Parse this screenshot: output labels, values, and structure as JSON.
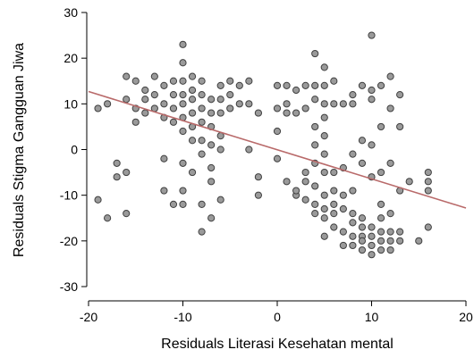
{
  "chart_data": {
    "type": "scatter",
    "xlabel": "Residuals Literasi Kesehatan mental",
    "ylabel": "Residuals Stigma Gangguan Jiwa",
    "xlim": [
      -20,
      20
    ],
    "ylim": [
      -30,
      30
    ],
    "x_ticks": [
      -20,
      -10,
      0,
      10,
      20
    ],
    "y_ticks": [
      -30,
      -20,
      -10,
      0,
      10,
      20,
      30
    ],
    "x_tick_labels": [
      "-20",
      "-10",
      "0",
      "10",
      "20"
    ],
    "y_tick_labels": [
      "-30",
      "-20",
      "-10",
      "0",
      "10",
      "20",
      "30"
    ],
    "grid": false,
    "point_color": "#9a9a9a",
    "point_edge_color": "#404040",
    "regression_line": {
      "color": "#b96a6a",
      "from": [
        -20,
        12.7
      ],
      "to": [
        20,
        -12.8
      ]
    },
    "points": [
      [
        -19,
        9
      ],
      [
        -18,
        10
      ],
      [
        -19,
        -11
      ],
      [
        -18,
        -15
      ],
      [
        -17,
        -3
      ],
      [
        -17,
        -6
      ],
      [
        -16,
        -5
      ],
      [
        -16,
        -14
      ],
      [
        -16,
        16
      ],
      [
        -15,
        15
      ],
      [
        -16,
        11
      ],
      [
        -15,
        9
      ],
      [
        -14,
        13
      ],
      [
        -14,
        11
      ],
      [
        -14,
        8
      ],
      [
        -15,
        6
      ],
      [
        -13,
        16
      ],
      [
        -13,
        12
      ],
      [
        -13,
        9
      ],
      [
        -12,
        14
      ],
      [
        -12,
        10
      ],
      [
        -12,
        7
      ],
      [
        -12,
        -2
      ],
      [
        -12,
        -9
      ],
      [
        -11,
        15
      ],
      [
        -11,
        12
      ],
      [
        -11,
        9
      ],
      [
        -11,
        6
      ],
      [
        -10,
        23
      ],
      [
        -10,
        19
      ],
      [
        -10,
        15
      ],
      [
        -10,
        12
      ],
      [
        -10,
        10
      ],
      [
        -10,
        7
      ],
      [
        -10,
        4
      ],
      [
        -10,
        -3
      ],
      [
        -10,
        -9
      ],
      [
        -10,
        -12
      ],
      [
        -11,
        -12
      ],
      [
        -9,
        16
      ],
      [
        -9,
        13
      ],
      [
        -9,
        11
      ],
      [
        -9,
        8
      ],
      [
        -9,
        5
      ],
      [
        -9,
        2
      ],
      [
        -9,
        -5
      ],
      [
        -8,
        15
      ],
      [
        -8,
        12
      ],
      [
        -8,
        9
      ],
      [
        -8,
        6
      ],
      [
        -8,
        2
      ],
      [
        -8,
        -1
      ],
      [
        -8,
        -12
      ],
      [
        -8,
        -18
      ],
      [
        -7,
        11
      ],
      [
        -7,
        8
      ],
      [
        -7,
        5
      ],
      [
        -7,
        1
      ],
      [
        -7,
        -4
      ],
      [
        -7,
        -7
      ],
      [
        -7,
        -15
      ],
      [
        -6,
        14
      ],
      [
        -6,
        11
      ],
      [
        -6,
        8
      ],
      [
        -6,
        3
      ],
      [
        -6,
        0
      ],
      [
        -6,
        -11
      ],
      [
        -5,
        15
      ],
      [
        -5,
        12
      ],
      [
        -5,
        9
      ],
      [
        -4,
        14
      ],
      [
        -4,
        10
      ],
      [
        -3,
        0
      ],
      [
        -3,
        15
      ],
      [
        -3,
        10
      ],
      [
        -2,
        8
      ],
      [
        -2,
        -6
      ],
      [
        -2,
        -10
      ],
      [
        0,
        14
      ],
      [
        0,
        9
      ],
      [
        0,
        4
      ],
      [
        0,
        -2
      ],
      [
        1,
        14
      ],
      [
        1,
        10
      ],
      [
        1,
        8
      ],
      [
        1,
        -7
      ],
      [
        2,
        13
      ],
      [
        2,
        8
      ],
      [
        2,
        -10
      ],
      [
        2,
        -9
      ],
      [
        3,
        14
      ],
      [
        3,
        9
      ],
      [
        3,
        -5
      ],
      [
        3,
        -7
      ],
      [
        3,
        -11
      ],
      [
        4,
        21
      ],
      [
        4,
        14
      ],
      [
        4,
        11
      ],
      [
        4,
        5
      ],
      [
        4,
        1
      ],
      [
        4,
        -3
      ],
      [
        4,
        -8
      ],
      [
        4,
        -12
      ],
      [
        4,
        -14
      ],
      [
        5,
        18
      ],
      [
        5,
        14
      ],
      [
        5,
        10
      ],
      [
        5,
        7
      ],
      [
        5,
        3
      ],
      [
        5,
        -1
      ],
      [
        5,
        -5
      ],
      [
        5,
        -10
      ],
      [
        5,
        -13
      ],
      [
        5,
        -15
      ],
      [
        5,
        -19
      ],
      [
        6,
        15
      ],
      [
        6,
        10
      ],
      [
        6,
        -5
      ],
      [
        6,
        -9
      ],
      [
        6,
        -12
      ],
      [
        6,
        -14
      ],
      [
        6,
        -17
      ],
      [
        7,
        10
      ],
      [
        7,
        -4
      ],
      [
        7,
        -10
      ],
      [
        7,
        -13
      ],
      [
        7,
        -18
      ],
      [
        7,
        -21
      ],
      [
        8,
        12
      ],
      [
        8,
        10
      ],
      [
        8,
        -1
      ],
      [
        8,
        -9
      ],
      [
        8,
        -14
      ],
      [
        8,
        -16
      ],
      [
        8,
        -19
      ],
      [
        8,
        -21
      ],
      [
        9,
        14
      ],
      [
        9,
        2
      ],
      [
        9,
        -3
      ],
      [
        9,
        -15
      ],
      [
        9,
        -17
      ],
      [
        9,
        -19
      ],
      [
        9,
        -20
      ],
      [
        9,
        -22
      ],
      [
        10,
        25
      ],
      [
        10,
        13
      ],
      [
        10,
        11
      ],
      [
        10,
        1
      ],
      [
        10,
        -6
      ],
      [
        10,
        -17
      ],
      [
        10,
        -19
      ],
      [
        10,
        -21
      ],
      [
        10,
        -23
      ],
      [
        11,
        14
      ],
      [
        11,
        5
      ],
      [
        11,
        -5
      ],
      [
        11,
        -12
      ],
      [
        11,
        -15
      ],
      [
        11,
        -18
      ],
      [
        11,
        -20
      ],
      [
        11,
        -22
      ],
      [
        12,
        16
      ],
      [
        12,
        9
      ],
      [
        12,
        -3
      ],
      [
        12,
        -14
      ],
      [
        12,
        -18
      ],
      [
        12,
        -20
      ],
      [
        12,
        -22
      ],
      [
        13,
        12
      ],
      [
        13,
        5
      ],
      [
        13,
        -9
      ],
      [
        13,
        -18
      ],
      [
        13,
        -20
      ],
      [
        14,
        -7
      ],
      [
        15,
        -20
      ],
      [
        16,
        -5
      ],
      [
        16,
        -9
      ],
      [
        16,
        -7
      ],
      [
        16,
        -17
      ]
    ]
  }
}
